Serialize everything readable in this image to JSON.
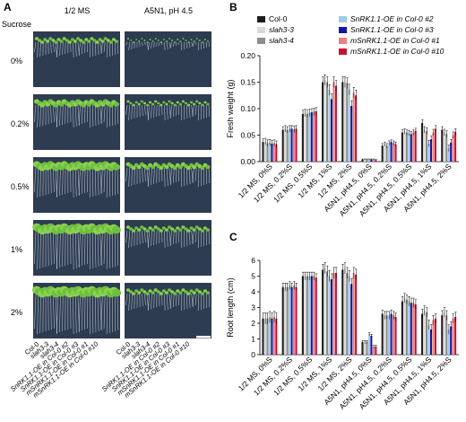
{
  "panel_letters": {
    "a": "A",
    "b": "B",
    "c": "C"
  },
  "photo_panel": {
    "column_headers": [
      "1/2 MS",
      "A5N1, pH 4.5"
    ],
    "row_header": "Sucrose",
    "row_labels": [
      "0%",
      "0.2%",
      "0.5%",
      "1%",
      "2%"
    ],
    "genotype_labels": [
      "Col-0",
      "slah3-3",
      "slah3-4",
      "SnRK1.1-OE in Col-0 #2",
      "SnRK1.1-OE in Col-0 #3",
      "mSnRK1.1-OE in Col-0 #1",
      "mSnRK1.1-OE in Col-0 #10"
    ]
  },
  "legend": {
    "entries": [
      {
        "label": "Col-0",
        "color": "#1c1c1c"
      },
      {
        "label": "slah3-3",
        "color": "#d9d9d9"
      },
      {
        "label": "slah3-4",
        "color": "#8c8c8c"
      },
      {
        "label": "SnRK1.1-OE in Col-0 #2",
        "color": "#9fcce0"
      },
      {
        "label": "SnRK1.1-OE in Col-0 #3",
        "color": "#1515a8"
      },
      {
        "label": "mSnRK1.1-OE in Col-0 #1",
        "color": "#ee7f7f"
      },
      {
        "label": "mSnRK1.1-OE in Col-0 #10",
        "color": "#c8102e"
      }
    ]
  },
  "chart_data": [
    {
      "type": "bar",
      "panel": "B",
      "ylabel": "Fresh weight  (g)",
      "ylim": [
        0,
        0.2
      ],
      "yticks": [
        "0.00",
        "0.05",
        "0.10",
        "0.15",
        "0.20"
      ],
      "categories": [
        "1/2 MS, 0%S",
        "1/2 MS, 0.2%S",
        "1/2 MS, 0.5%S",
        "1/2 MS, 1%S",
        "1/2 MS, 2%S",
        "A5N1, pH4.5, 0%S",
        "A5N1, pH4.5, 0.2%S",
        "A5N1, pH4.5, 0.5%S",
        "A5N1, pH4.5, 1%S",
        "A5N1, pH4.5, 2%S"
      ],
      "series": [
        {
          "name": "Col-0",
          "values": [
            0.037,
            0.06,
            0.09,
            0.15,
            0.15,
            0.004,
            0.03,
            0.055,
            0.073,
            0.06
          ]
        },
        {
          "name": "slah3-3",
          "values": [
            0.038,
            0.062,
            0.092,
            0.154,
            0.15,
            0.004,
            0.033,
            0.057,
            0.06,
            0.055
          ]
        },
        {
          "name": "slah3-4",
          "values": [
            0.035,
            0.06,
            0.09,
            0.15,
            0.148,
            0.004,
            0.03,
            0.055,
            0.058,
            0.052
          ]
        },
        {
          "name": "SnRK1.1-OE in Col-0 #2",
          "values": [
            0.036,
            0.062,
            0.092,
            0.135,
            0.136,
            0.004,
            0.035,
            0.054,
            0.034,
            0.025
          ]
        },
        {
          "name": "SnRK1.1-OE in Col-0 #3",
          "values": [
            0.034,
            0.062,
            0.093,
            0.118,
            0.105,
            0.004,
            0.037,
            0.052,
            0.042,
            0.036
          ]
        },
        {
          "name": "mSnRK1.1-OE in Col-0 #1",
          "values": [
            0.035,
            0.061,
            0.094,
            0.15,
            0.13,
            0.004,
            0.035,
            0.055,
            0.055,
            0.05
          ]
        },
        {
          "name": "mSnRK1.1-OE in Col-0 #10",
          "values": [
            0.033,
            0.062,
            0.095,
            0.143,
            0.125,
            0.003,
            0.033,
            0.058,
            0.062,
            0.056
          ]
        }
      ],
      "errors": [
        0.006,
        0.006,
        0.007,
        0.01,
        0.01,
        0.001,
        0.004,
        0.005,
        0.006,
        0.006
      ]
    },
    {
      "type": "bar",
      "panel": "C",
      "ylabel": "Root length  (cm)",
      "ylim": [
        0,
        6
      ],
      "yticks": [
        "0",
        "1",
        "2",
        "3",
        "4",
        "5",
        "6"
      ],
      "categories": [
        "1/2 MS, 0%S",
        "1/2 MS, 0.2%S",
        "1/2 MS, 0.5%S",
        "1/2 MS, 1%S",
        "1/2 MS, 2%S",
        "A5N1, pH4.5, 0%S",
        "A5N1, pH4.5, 0.2%S",
        "A5N1, pH4.5, 0.5%S",
        "A5N1, pH4.5, 1%S",
        "A5N1, pH4.5, 2%S"
      ],
      "series": [
        {
          "name": "Col-0",
          "values": [
            2.3,
            4.3,
            5.0,
            5.4,
            5.4,
            0.8,
            2.6,
            3.4,
            2.6,
            2.5
          ]
        },
        {
          "name": "slah3-3",
          "values": [
            2.3,
            4.3,
            5.0,
            5.5,
            5.5,
            0.8,
            2.5,
            3.6,
            2.8,
            2.7
          ]
        },
        {
          "name": "slah3-4",
          "values": [
            2.3,
            4.3,
            5.0,
            5.3,
            5.2,
            0.8,
            2.5,
            3.5,
            2.7,
            2.5
          ]
        },
        {
          "name": "SnRK1.1-OE in Col-0 #2",
          "values": [
            2.4,
            4.4,
            5.0,
            5.0,
            5.0,
            1.3,
            2.5,
            3.4,
            1.9,
            1.6
          ]
        },
        {
          "name": "SnRK1.1-OE in Col-0 #3",
          "values": [
            2.3,
            4.3,
            5.0,
            4.8,
            4.5,
            1.2,
            2.6,
            3.3,
            1.6,
            1.8
          ]
        },
        {
          "name": "mSnRK1.1-OE in Col-0 #1",
          "values": [
            2.4,
            4.4,
            5.0,
            5.2,
            5.2,
            0.5,
            2.5,
            3.3,
            2.2,
            2.3
          ]
        },
        {
          "name": "mSnRK1.1-OE in Col-0 #10",
          "values": [
            2.3,
            4.3,
            4.9,
            5.2,
            5.1,
            0.5,
            2.4,
            3.2,
            2.3,
            2.4
          ]
        }
      ],
      "errors": [
        0.35,
        0.25,
        0.25,
        0.35,
        0.35,
        0.1,
        0.25,
        0.3,
        0.3,
        0.3
      ]
    }
  ]
}
